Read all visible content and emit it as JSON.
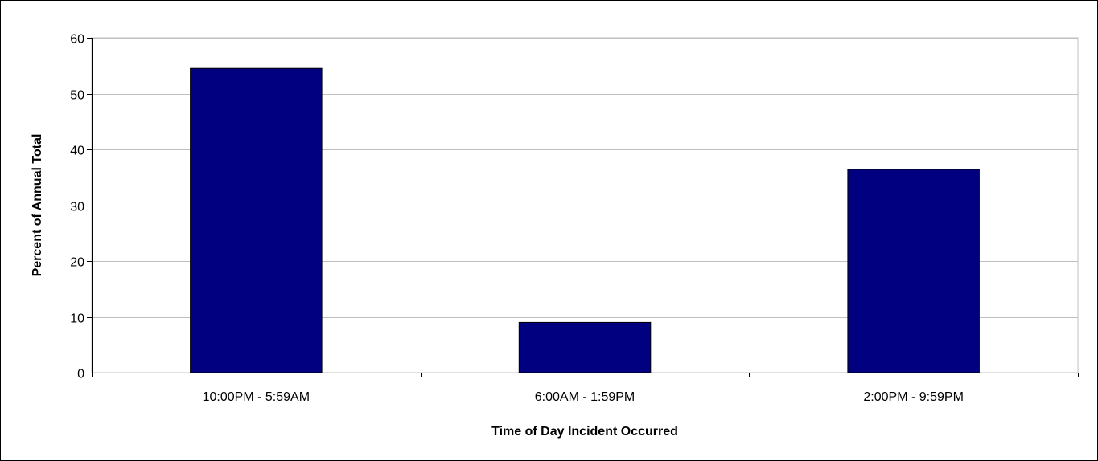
{
  "chart_data": {
    "type": "bar",
    "categories": [
      "10:00PM - 5:59AM",
      "6:00AM - 1:59PM",
      "2:00PM - 9:59PM"
    ],
    "values": [
      54.5,
      9,
      36.4
    ],
    "title": "",
    "xlabel": "Time of Day Incident Occurred",
    "ylabel": "Percent of Annual Total",
    "ylim": [
      0,
      60
    ],
    "yticks": [
      0,
      10,
      20,
      30,
      40,
      50,
      60
    ],
    "grid": true,
    "legend": "none",
    "colors": {
      "bar_fill": "#000080",
      "bar_stroke": "#000000",
      "grid": "#c0c0c0",
      "axis": "#000000",
      "background": "#ffffff"
    }
  }
}
